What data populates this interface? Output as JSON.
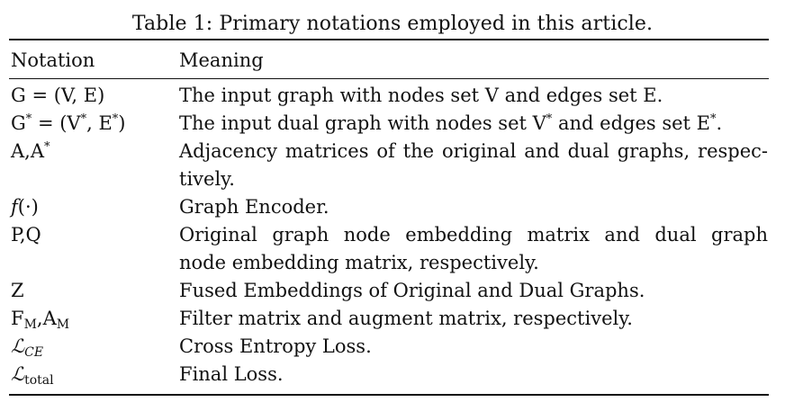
{
  "caption": "Table 1: Primary notations employed in this article.",
  "columns": {
    "notation": "Notation",
    "meaning": "Meaning"
  },
  "rows": [
    {
      "notation": "G = (V, E)",
      "meaning_lines": [
        "The input graph with nodes set V and edges set E."
      ]
    },
    {
      "notation": "G* = (V*, E*)",
      "meaning_lines": [
        "The input dual graph with nodes set V* and edges set E*."
      ]
    },
    {
      "notation": "A,A*",
      "meaning_lines": [
        "Adjacency matrices of the original and dual graphs, respec-",
        "tively."
      ]
    },
    {
      "notation": "f(·)",
      "meaning_lines": [
        "Graph Encoder."
      ]
    },
    {
      "notation": "P,Q",
      "meaning_lines": [
        "Original graph node embedding matrix and dual graph",
        "node embedding matrix, respectively."
      ]
    },
    {
      "notation": "Z",
      "meaning_lines": [
        "Fused Embeddings of Original and Dual Graphs."
      ]
    },
    {
      "notation": "F_M,A_M",
      "meaning_lines": [
        "Filter matrix and augment matrix, respectively."
      ]
    },
    {
      "notation": "ℒ_CE",
      "meaning_lines": [
        "Cross Entropy Loss."
      ]
    },
    {
      "notation": "ℒ_total",
      "meaning_lines": [
        "Final Loss."
      ]
    }
  ]
}
